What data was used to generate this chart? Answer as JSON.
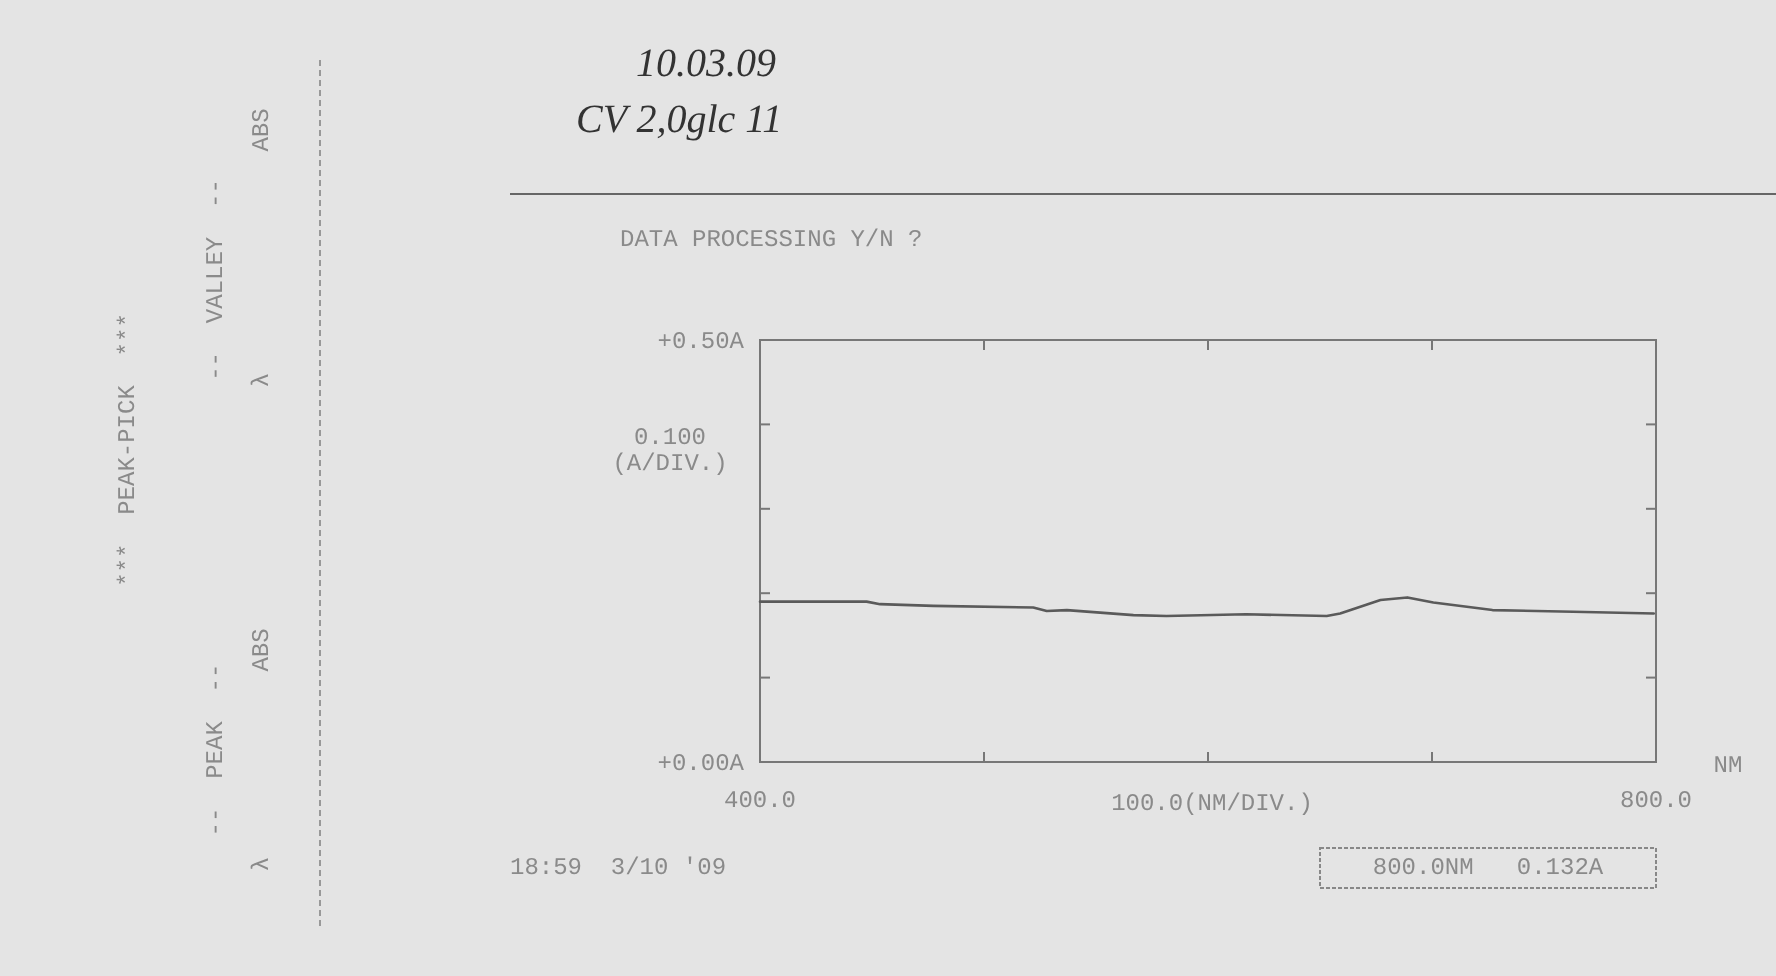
{
  "chart_data": {
    "type": "line",
    "title": "DATA PROCESSING Y/N ?",
    "xlabel": "100.0(NM/DIV.)",
    "ylabel": "0.100\n(A/DIV.)",
    "x": [
      400,
      447.6,
      453.6,
      477.4,
      522,
      528,
      537,
      566.7,
      581.5,
      617,
      653,
      659,
      677,
      689,
      700.6,
      727,
      763,
      799
    ],
    "series": [
      {
        "color": "#5a5a5a",
        "values": [
          0.19,
          0.19,
          0.187,
          0.185,
          0.183,
          0.179,
          0.18,
          0.174,
          0.173,
          0.175,
          0.173,
          0.176,
          0.192,
          0.195,
          0.189,
          0.18,
          0.178,
          0.176
        ]
      }
    ],
    "xlim": [
      400,
      800
    ],
    "xticks": [
      {
        "value": 400,
        "label": "400.0"
      },
      {
        "value": 500,
        "label": null
      },
      {
        "value": 600,
        "label": null
      },
      {
        "value": 700,
        "label": null
      },
      {
        "value": 800,
        "label": "800.0"
      }
    ],
    "ylim": [
      0,
      0.5
    ],
    "yticks": [
      {
        "value": 0,
        "label": "+0.00A"
      },
      {
        "value": 0.1,
        "label": null
      },
      {
        "value": 0.2,
        "label": null
      },
      {
        "value": 0.3,
        "label": null
      },
      {
        "value": 0.4,
        "label": null
      },
      {
        "value": 0.5,
        "label": "+0.50A"
      }
    ],
    "grid": false,
    "marker": "none",
    "line_style": "solid",
    "annotations": [
      "10.03.09",
      "CV 2,0glc 11",
      "18:59  3/10 '09",
      "800.0NM   0.132A",
      "NM",
      "***  PEAK-PICK  ***",
      "--  PEAK  --",
      "--  VALLEY  --",
      "ABS",
      "ABS",
      "λ",
      "λ"
    ]
  }
}
